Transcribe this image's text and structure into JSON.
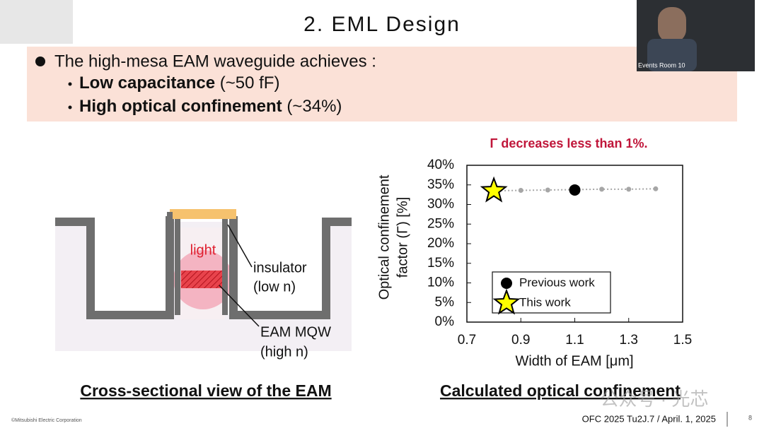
{
  "header": {
    "title": "2. EML Design"
  },
  "video": {
    "label": "Events Room 10"
  },
  "bullets": {
    "lead": "The high-mesa EAM waveguide achieves :",
    "items": [
      {
        "bold": "Low capacitance",
        "rest": "(~50 fF)"
      },
      {
        "bold": "High optical confinement",
        "rest": "(~34%)"
      }
    ]
  },
  "diagram": {
    "light": "light",
    "insulator": [
      "insulator",
      "(low n)"
    ],
    "mqw": [
      "EAM MQW",
      "(high n)"
    ],
    "caption": "Cross-sectional view of the EAM"
  },
  "chart_data": {
    "type": "scatter",
    "annotation": "Γ decreases less than 1%.",
    "xlabel": "Width of EAM [μm]",
    "ylabel": [
      "Optical confinement",
      "factor (Γ) [%]"
    ],
    "caption": "Calculated optical confinement",
    "xlim": [
      0.7,
      1.5
    ],
    "xticks": [
      0.7,
      0.9,
      1.1,
      1.3,
      1.5
    ],
    "ylim": [
      0,
      40
    ],
    "yticks": [
      {
        "value": 0,
        "label": "0%"
      },
      {
        "value": 5,
        "label": "5%"
      },
      {
        "value": 10,
        "label": "10%"
      },
      {
        "value": 15,
        "label": "15%"
      },
      {
        "value": 20,
        "label": "20%"
      },
      {
        "value": 25,
        "label": "25%"
      },
      {
        "value": 30,
        "label": "30%"
      },
      {
        "value": 35,
        "label": "35%"
      },
      {
        "value": 40,
        "label": "40%"
      }
    ],
    "legend": "lower center",
    "series": [
      {
        "color": "#a6a6a6",
        "line": "dotted",
        "x": [
          0.8,
          0.9,
          1.0,
          1.1,
          1.2,
          1.3,
          1.4
        ],
        "values": [
          33.5,
          33.6,
          33.7,
          33.8,
          33.9,
          33.9,
          34.0
        ]
      },
      {
        "name": "Previous work",
        "color": "#000000",
        "marker": "circle",
        "x": [
          1.1
        ],
        "values": [
          33.7
        ]
      },
      {
        "name": "This work",
        "color": "#ffff00",
        "marker": "star",
        "x": [
          0.8
        ],
        "values": [
          33.5
        ]
      }
    ]
  },
  "footer": {
    "copyright": "©Mitsubishi Electric Corporation",
    "conference": "OFC 2025 Tu2J.7 / April. 1, 2025",
    "page": "8"
  },
  "watermark": "公众号 · 光芯"
}
